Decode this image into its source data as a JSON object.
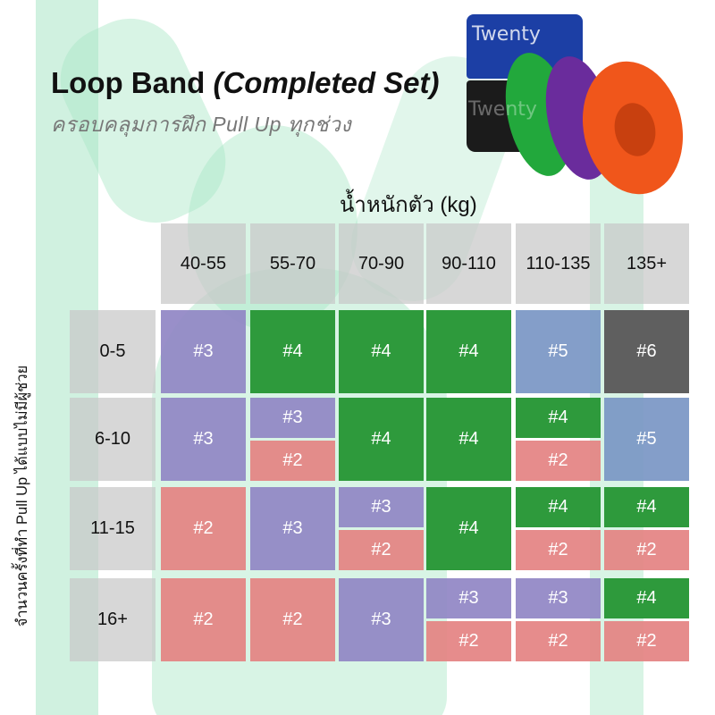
{
  "title": "Loop Band",
  "title_italic": "(Completed Set)",
  "subtitle": "ครอบคลุมการฝึก Pull Up ทุกช่วง",
  "product_image": {
    "brand_text": "Twenty"
  },
  "xlabel": "น้ำหนักตัว (kg)",
  "ylabel": "จำนวนครั้งที่ทำ Pull Up ได้แบบไม่มีผู้ช่วย",
  "columns": [
    "40-55",
    "55-70",
    "70-90",
    "90-110",
    "110-135",
    "135+"
  ],
  "rows": [
    "0-5",
    "6-10",
    "11-15",
    "16+"
  ],
  "colors": {
    "#2": "#e48282",
    "#3": "#9086c4",
    "#4": "#2e9a3c",
    "#5": "#7a96c4",
    "#6": "#5f5f5f",
    "header": "#c8c8c8"
  },
  "grid": [
    [
      [
        "#3"
      ],
      [
        "#4"
      ],
      [
        "#4"
      ],
      [
        "#4"
      ],
      [
        "#5"
      ],
      [
        "#6"
      ]
    ],
    [
      [
        "#3"
      ],
      [
        "#3",
        "#2"
      ],
      [
        "#4"
      ],
      [
        "#4"
      ],
      [
        "#4",
        "#2"
      ],
      [
        "#5"
      ]
    ],
    [
      [
        "#2"
      ],
      [
        "#3"
      ],
      [
        "#3",
        "#2"
      ],
      [
        "#4"
      ],
      [
        "#4",
        "#2"
      ],
      [
        "#4",
        "#2"
      ]
    ],
    [
      [
        "#2"
      ],
      [
        "#2"
      ],
      [
        "#3"
      ],
      [
        "#3",
        "#2"
      ],
      [
        "#3",
        "#2"
      ],
      [
        "#4",
        "#2"
      ]
    ]
  ]
}
